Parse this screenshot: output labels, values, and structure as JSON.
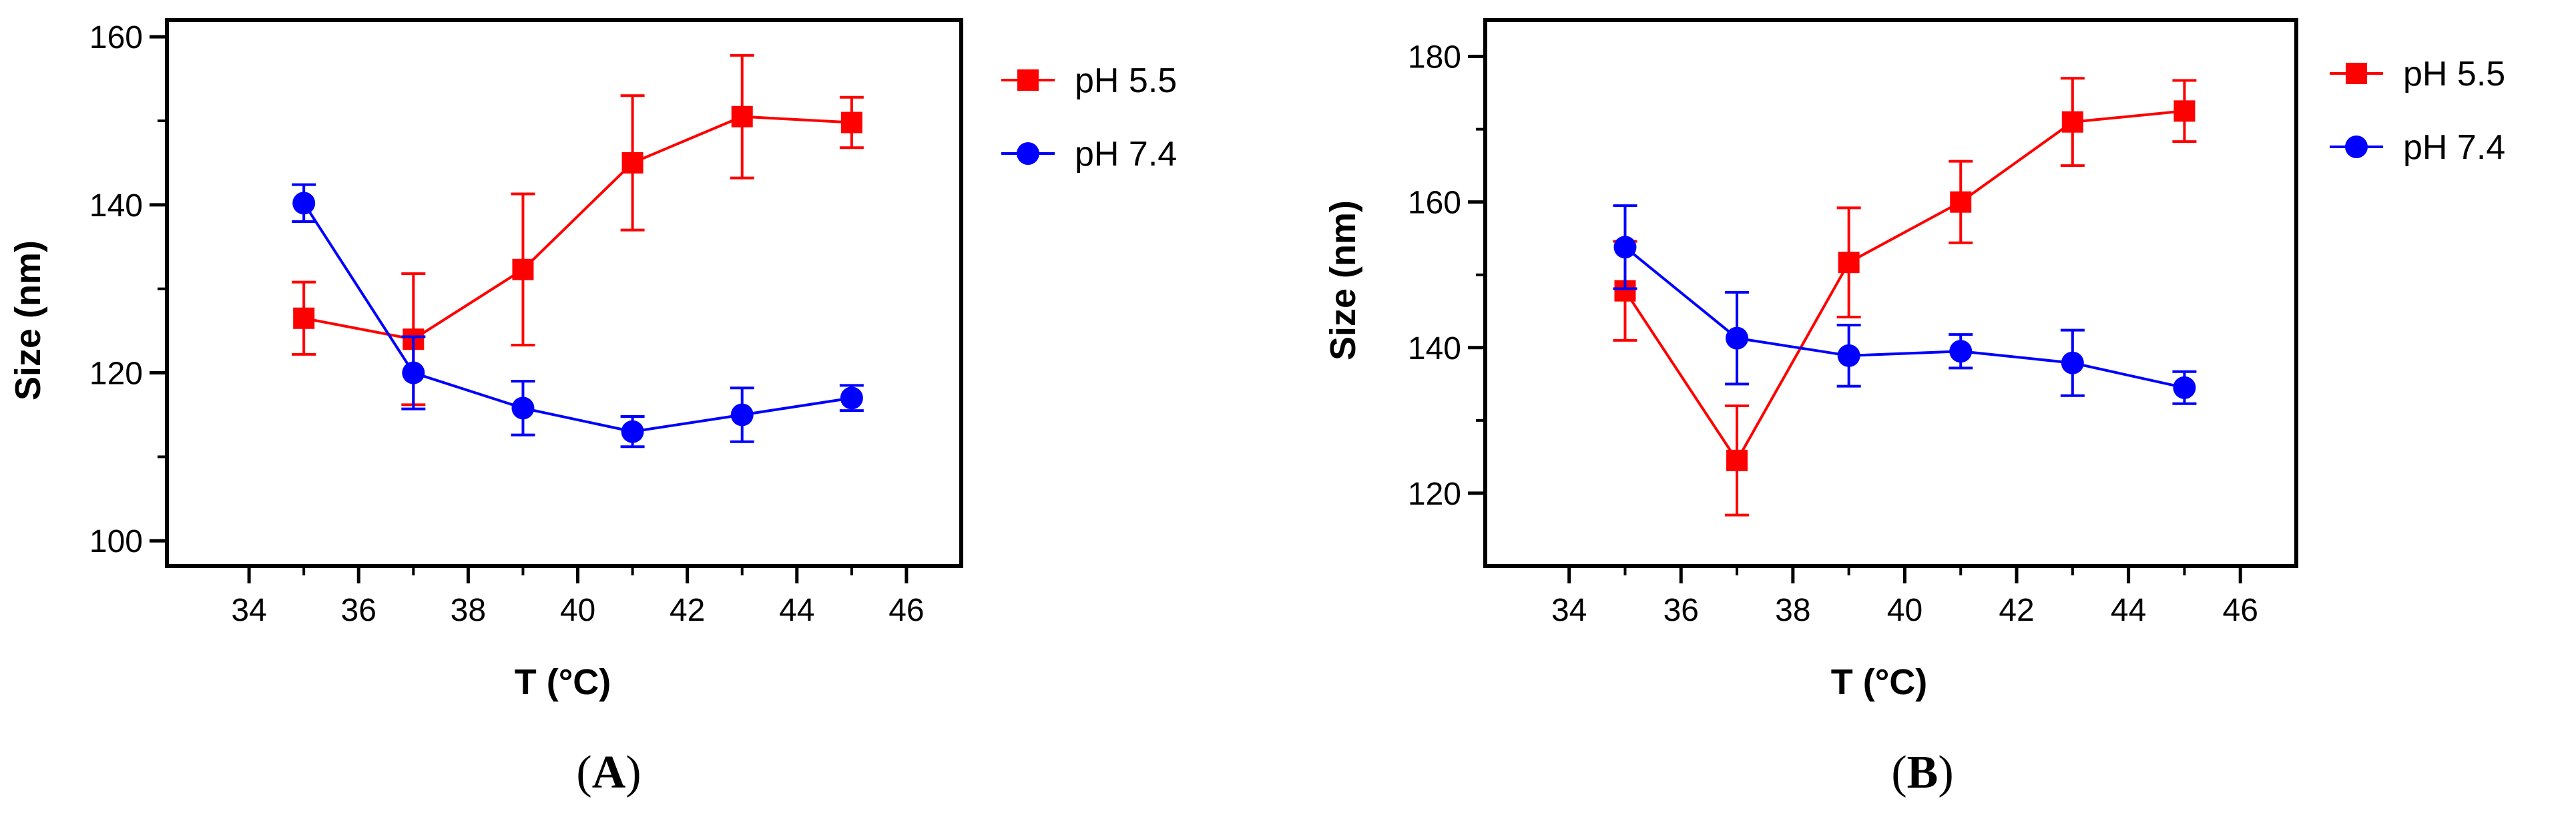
{
  "chart_data": [
    {
      "type": "line",
      "panel_label": "A",
      "xlabel": "T (°C)",
      "ylabel": "Size (nm)",
      "xlim": [
        32.5,
        47
      ],
      "ylim": [
        97,
        162
      ],
      "xticks": [
        34,
        36,
        38,
        40,
        42,
        44,
        46
      ],
      "yticks": [
        100,
        120,
        140,
        160
      ],
      "x": [
        35,
        37,
        39,
        41,
        43,
        45
      ],
      "legend_position": "top-right",
      "series": [
        {
          "name": "pH 5.5",
          "marker": "square",
          "color": "#ff0000",
          "values": [
            126.5,
            124.0,
            132.3,
            145.0,
            150.5,
            149.8
          ],
          "errors": [
            4.3,
            7.8,
            9.0,
            8.0,
            7.3,
            3.0
          ]
        },
        {
          "name": "pH 7.4",
          "marker": "circle",
          "color": "#0000ff",
          "values": [
            140.2,
            120.0,
            115.8,
            113.0,
            115.0,
            117.0
          ],
          "errors": [
            2.2,
            4.3,
            3.2,
            1.8,
            3.2,
            1.5
          ]
        }
      ]
    },
    {
      "type": "line",
      "panel_label": "B",
      "xlabel": "T (°C)",
      "ylabel": "Size (nm)",
      "xlim": [
        32.5,
        47
      ],
      "ylim": [
        110,
        185
      ],
      "xticks": [
        34,
        36,
        38,
        40,
        42,
        44,
        46
      ],
      "yticks": [
        120,
        140,
        160,
        180
      ],
      "x": [
        35,
        37,
        39,
        41,
        43,
        45
      ],
      "legend_position": "top-right",
      "series": [
        {
          "name": "pH 5.5",
          "marker": "square",
          "color": "#ff0000",
          "values": [
            147.8,
            124.5,
            151.7,
            160.0,
            171.0,
            172.5
          ],
          "errors": [
            6.8,
            7.5,
            7.5,
            5.6,
            6.0,
            4.2
          ]
        },
        {
          "name": "pH 7.4",
          "marker": "circle",
          "color": "#0000ff",
          "values": [
            153.8,
            141.3,
            138.9,
            139.5,
            137.9,
            134.5
          ],
          "errors": [
            5.7,
            6.3,
            4.2,
            2.3,
            4.5,
            2.2
          ]
        }
      ]
    }
  ]
}
